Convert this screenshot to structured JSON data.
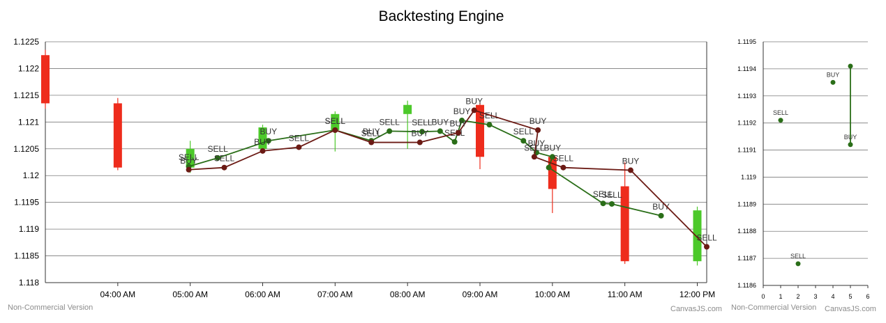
{
  "title": "Backtesting Engine",
  "watermarks": {
    "left_main": "Non-Commercial Version",
    "right_main": "CanvasJS.com",
    "left_side": "Non-Commercial Version",
    "right_side": "CanvasJS.com"
  },
  "colors": {
    "bull": "#4cc92a",
    "bear": "#ee2c1c",
    "line_green": "#2a6e18",
    "line_maroon": "#6b1a14",
    "grid": "#7a7a7a"
  },
  "chart_data": [
    {
      "type": "candlestick",
      "title": "Backtesting Engine",
      "xlabel": "",
      "ylabel": "",
      "x_ticks": [
        "04:00 AM",
        "05:00 AM",
        "06:00 AM",
        "07:00 AM",
        "08:00 AM",
        "09:00 AM",
        "10:00 AM",
        "11:00 AM",
        "12:00 PM"
      ],
      "y_ticks": [
        "1.118",
        "1.1185",
        "1.119",
        "1.1195",
        "1.12",
        "1.1205",
        "1.121",
        "1.1215",
        "1.122",
        "1.1225"
      ],
      "ylim": [
        1.118,
        1.1225
      ],
      "xlim_hours": [
        3.0,
        12.13
      ],
      "grid": true,
      "candles": [
        {
          "t": 3.0,
          "open": 1.12225,
          "high": 1.12235,
          "low": 1.12125,
          "close": 1.12135
        },
        {
          "t": 4.0,
          "open": 1.12135,
          "high": 1.12145,
          "low": 1.1201,
          "close": 1.12015
        },
        {
          "t": 5.0,
          "open": 1.12015,
          "high": 1.12065,
          "low": 1.12005,
          "close": 1.1205
        },
        {
          "t": 6.0,
          "open": 1.1205,
          "high": 1.12095,
          "low": 1.12045,
          "close": 1.1209
        },
        {
          "t": 7.0,
          "open": 1.12085,
          "high": 1.1212,
          "low": 1.12045,
          "close": 1.12115
        },
        {
          "t": 8.0,
          "open": 1.12115,
          "high": 1.1214,
          "low": 1.1205,
          "close": 1.12132
        },
        {
          "t": 9.0,
          "open": 1.12132,
          "high": 1.12135,
          "low": 1.12012,
          "close": 1.12035
        },
        {
          "t": 10.0,
          "open": 1.12035,
          "high": 1.1204,
          "low": 1.1193,
          "close": 1.11975
        },
        {
          "t": 11.0,
          "open": 1.1198,
          "high": 1.12025,
          "low": 1.11835,
          "close": 1.1184
        },
        {
          "t": 12.0,
          "open": 1.1184,
          "high": 1.11942,
          "low": 1.11832,
          "close": 1.11935
        }
      ],
      "series": [
        {
          "name": "",
          "color": "green",
          "points": [
            {
              "t": 4.98,
              "y": 1.12017,
              "label": "SELL"
            },
            {
              "t": 5.38,
              "y": 1.12033,
              "label": "SELL"
            },
            {
              "t": 6.08,
              "y": 1.12065,
              "label": "BUY"
            },
            {
              "t": 7.0,
              "y": 1.12085,
              "label": "SELL"
            },
            {
              "t": 7.5,
              "y": 1.12065,
              "label": "BUY"
            },
            {
              "t": 7.75,
              "y": 1.12083,
              "label": "SELL"
            },
            {
              "t": 8.2,
              "y": 1.12082,
              "label": "SELL"
            },
            {
              "t": 8.45,
              "y": 1.12083,
              "label": "BUY"
            },
            {
              "t": 8.65,
              "y": 1.12063,
              "label": "SELL"
            },
            {
              "t": 8.75,
              "y": 1.12103,
              "label": "BUY"
            },
            {
              "t": 9.13,
              "y": 1.12095,
              "label": "SELL"
            },
            {
              "t": 9.6,
              "y": 1.12065,
              "label": "SELL"
            },
            {
              "t": 9.78,
              "y": 1.12043,
              "label": "BUY"
            },
            {
              "t": 10.0,
              "y": 1.12035,
              "label": "BUY"
            },
            {
              "t": 9.95,
              "y": 1.12015,
              "label": ""
            },
            {
              "t": 10.7,
              "y": 1.11948,
              "label": "SELL"
            },
            {
              "t": 10.82,
              "y": 1.11947,
              "label": "SELL"
            },
            {
              "t": 11.5,
              "y": 1.11925,
              "label": "BUY"
            }
          ]
        },
        {
          "name": "",
          "color": "maroon",
          "points": [
            {
              "t": 4.98,
              "y": 1.12011,
              "label": "BUY"
            },
            {
              "t": 5.47,
              "y": 1.12015,
              "label": "SELL"
            },
            {
              "t": 6.0,
              "y": 1.12046,
              "label": "BUY"
            },
            {
              "t": 6.5,
              "y": 1.12053,
              "label": "SELL"
            },
            {
              "t": 7.0,
              "y": 1.12085,
              "label": "SELL"
            },
            {
              "t": 7.5,
              "y": 1.12062,
              "label": "SELL"
            },
            {
              "t": 8.17,
              "y": 1.12062,
              "label": "BUY"
            },
            {
              "t": 8.7,
              "y": 1.1208,
              "label": "BUY"
            },
            {
              "t": 8.92,
              "y": 1.12122,
              "label": "BUY"
            },
            {
              "t": 9.8,
              "y": 1.12085,
              "label": "BUY"
            },
            {
              "t": 9.75,
              "y": 1.12035,
              "label": "SELL"
            },
            {
              "t": 10.15,
              "y": 1.12015,
              "label": "SELL"
            },
            {
              "t": 11.08,
              "y": 1.1201,
              "label": "BUY"
            },
            {
              "t": 12.13,
              "y": 1.11867,
              "label": "SELL"
            }
          ]
        }
      ]
    },
    {
      "type": "line",
      "title": "",
      "xlabel": "",
      "ylabel": "",
      "x_ticks": [
        "0",
        "1",
        "2",
        "3",
        "4",
        "5",
        "6"
      ],
      "y_ticks": [
        "1.1186",
        "1.1187",
        "1.1188",
        "1.1189",
        "1.119",
        "1.1191",
        "1.1192",
        "1.1193",
        "1.1194",
        "1.1195"
      ],
      "xlim": [
        0,
        6
      ],
      "ylim": [
        1.1186,
        1.1195
      ],
      "grid": true,
      "points": [
        {
          "x": 1,
          "y": 1.11921,
          "label": "SELL"
        },
        {
          "x": 2,
          "y": 1.11868,
          "label": "SELL"
        },
        {
          "x": 4,
          "y": 1.11935,
          "label": "BUY"
        },
        {
          "x": 5,
          "y": 1.11941,
          "label": ""
        },
        {
          "x": 5,
          "y": 1.11912,
          "label": "BUY"
        }
      ]
    }
  ]
}
